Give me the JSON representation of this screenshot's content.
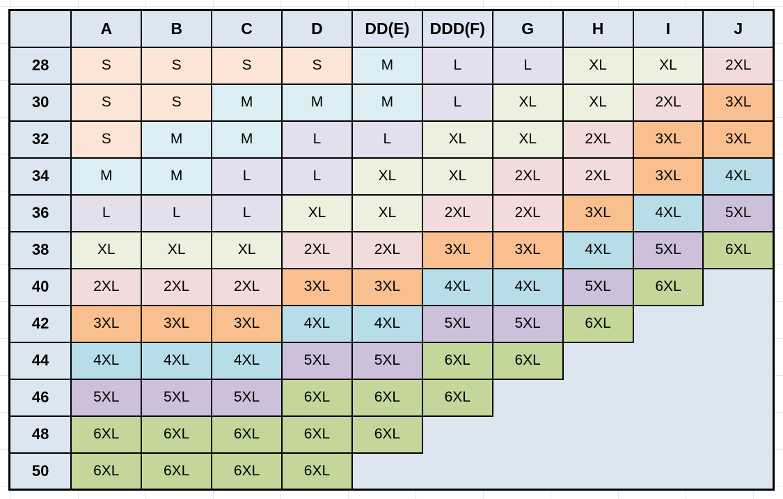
{
  "chart_data": {
    "type": "table",
    "columns": [
      "",
      "A",
      "B",
      "C",
      "D",
      "DD(E)",
      "DDD(F)",
      "G",
      "H",
      "I",
      "J"
    ],
    "rows": [
      {
        "label": "28",
        "cells": [
          "S",
          "S",
          "S",
          "S",
          "M",
          "L",
          "L",
          "XL",
          "XL",
          "2XL"
        ]
      },
      {
        "label": "30",
        "cells": [
          "S",
          "S",
          "M",
          "M",
          "M",
          "L",
          "XL",
          "XL",
          "2XL",
          "3XL"
        ]
      },
      {
        "label": "32",
        "cells": [
          "S",
          "M",
          "M",
          "L",
          "L",
          "XL",
          "XL",
          "2XL",
          "3XL",
          "3XL"
        ]
      },
      {
        "label": "34",
        "cells": [
          "M",
          "M",
          "L",
          "L",
          "XL",
          "XL",
          "2XL",
          "2XL",
          "3XL",
          "4XL"
        ]
      },
      {
        "label": "36",
        "cells": [
          "L",
          "L",
          "L",
          "XL",
          "XL",
          "2XL",
          "2XL",
          "3XL",
          "4XL",
          "5XL"
        ]
      },
      {
        "label": "38",
        "cells": [
          "XL",
          "XL",
          "XL",
          "2XL",
          "2XL",
          "3XL",
          "3XL",
          "4XL",
          "5XL",
          "6XL"
        ]
      },
      {
        "label": "40",
        "cells": [
          "2XL",
          "2XL",
          "2XL",
          "3XL",
          "3XL",
          "4XL",
          "4XL",
          "5XL",
          "6XL",
          null
        ]
      },
      {
        "label": "42",
        "cells": [
          "3XL",
          "3XL",
          "3XL",
          "4XL",
          "4XL",
          "5XL",
          "5XL",
          "6XL",
          null,
          null
        ]
      },
      {
        "label": "44",
        "cells": [
          "4XL",
          "4XL",
          "4XL",
          "5XL",
          "5XL",
          "6XL",
          "6XL",
          null,
          null,
          null
        ]
      },
      {
        "label": "46",
        "cells": [
          "5XL",
          "5XL",
          "5XL",
          "6XL",
          "6XL",
          "6XL",
          null,
          null,
          null,
          null
        ]
      },
      {
        "label": "48",
        "cells": [
          "6XL",
          "6XL",
          "6XL",
          "6XL",
          "6XL",
          null,
          null,
          null,
          null,
          null
        ]
      },
      {
        "label": "50",
        "cells": [
          "6XL",
          "6XL",
          "6XL",
          "6XL",
          null,
          null,
          null,
          null,
          null,
          null
        ]
      }
    ],
    "size_colors": {
      "S": "#fce4d6",
      "M": "#daeef3",
      "L": "#e4dfec",
      "XL": "#ebf1de",
      "2XL": "#f2dcdb",
      "3XL": "#fabf8f",
      "4XL": "#b7dee8",
      "5XL": "#ccc0da",
      "6XL": "#c4d79b"
    }
  },
  "colors": {
    "header_bg": "#dce6f1",
    "empty_bg": "#dce6f1",
    "table_border": "#000000",
    "text": "#000000",
    "sheet_bg": "#ffffff",
    "gridline": "#e2e8f1"
  }
}
